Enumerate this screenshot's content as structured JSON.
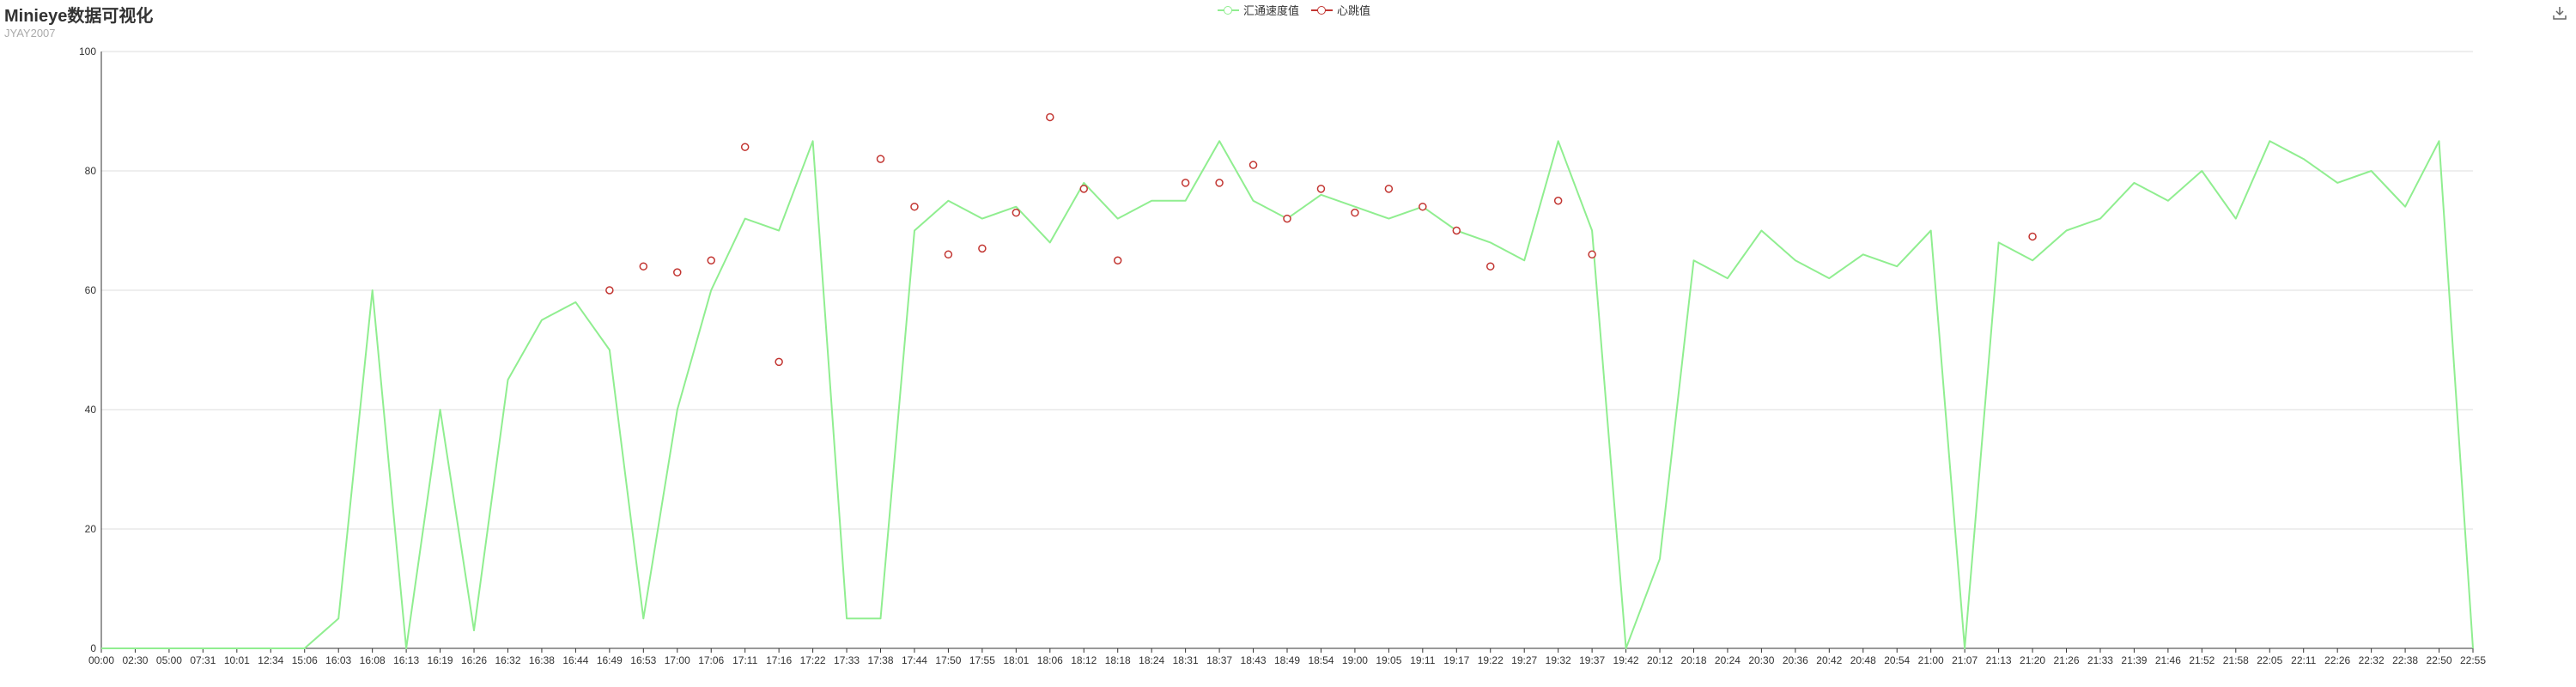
{
  "header": {
    "title": "Minieye数据可视化",
    "subtitle": "JYAY2007"
  },
  "legend": [
    {
      "name": "汇通速度值",
      "color": "#90ee90",
      "symbol": "empty-circle"
    },
    {
      "name": "心跳值",
      "color": "#c23531",
      "symbol": "empty-circle"
    }
  ],
  "toolbox": {
    "icon": "download-icon"
  },
  "colors": {
    "speed": "#90ee90",
    "heartbeat": "#c23531",
    "grid": "#dddddd",
    "axis": "#333333"
  },
  "chart_data": {
    "type": "line",
    "title": "Minieye数据可视化",
    "subtitle": "JYAY2007",
    "ylim": [
      0,
      100
    ],
    "yticks": [
      0,
      20,
      40,
      60,
      80,
      100
    ],
    "grid": "horizontal",
    "legend_position": "top-center",
    "categories": [
      "00:00",
      "02:30",
      "05:00",
      "07:31",
      "10:01",
      "12:34",
      "15:06",
      "16:03",
      "16:08",
      "16:13",
      "16:19",
      "16:26",
      "16:32",
      "16:38",
      "16:44",
      "16:49",
      "16:53",
      "17:00",
      "17:06",
      "17:11",
      "17:16",
      "17:22",
      "17:33",
      "17:38",
      "17:44",
      "17:50",
      "17:55",
      "18:01",
      "18:06",
      "18:12",
      "18:18",
      "18:24",
      "18:31",
      "18:37",
      "18:43",
      "18:49",
      "18:54",
      "19:00",
      "19:05",
      "19:11",
      "19:17",
      "19:22",
      "19:27",
      "19:32",
      "19:37",
      "19:42",
      "20:12",
      "20:18",
      "20:24",
      "20:30",
      "20:36",
      "20:42",
      "20:48",
      "20:54",
      "21:00",
      "21:07",
      "21:13",
      "21:20",
      "21:26",
      "21:33",
      "21:39",
      "21:46",
      "21:52",
      "21:58",
      "22:05",
      "22:11",
      "22:26",
      "22:32",
      "22:38",
      "22:50",
      "22:55"
    ],
    "series": [
      {
        "name": "汇通速度值",
        "values": [
          0,
          0,
          0,
          0,
          0,
          0,
          0,
          5,
          60,
          0,
          40,
          3,
          45,
          55,
          58,
          50,
          5,
          40,
          60,
          72,
          70,
          85,
          5,
          5,
          70,
          75,
          72,
          74,
          68,
          78,
          72,
          75,
          75,
          85,
          75,
          72,
          76,
          74,
          72,
          74,
          70,
          68,
          65,
          85,
          70,
          0,
          15,
          65,
          62,
          70,
          65,
          62,
          66,
          64,
          70,
          0,
          68,
          65,
          70,
          72,
          78,
          75,
          80,
          72,
          85,
          82,
          78,
          80,
          74,
          85,
          0
        ]
      },
      {
        "name": "心跳值",
        "points": [
          [
            "16:49",
            60
          ],
          [
            "16:53",
            64
          ],
          [
            "17:00",
            63
          ],
          [
            "17:06",
            65
          ],
          [
            "17:11",
            84
          ],
          [
            "17:16",
            48
          ],
          [
            "17:38",
            82
          ],
          [
            "17:44",
            74
          ],
          [
            "17:50",
            66
          ],
          [
            "17:55",
            67
          ],
          [
            "18:01",
            73
          ],
          [
            "18:06",
            89
          ],
          [
            "18:12",
            77
          ],
          [
            "18:18",
            65
          ],
          [
            "18:31",
            78
          ],
          [
            "18:37",
            78
          ],
          [
            "18:43",
            81
          ],
          [
            "18:49",
            72
          ],
          [
            "18:54",
            77
          ],
          [
            "19:00",
            73
          ],
          [
            "19:05",
            77
          ],
          [
            "19:11",
            74
          ],
          [
            "19:17",
            70
          ],
          [
            "19:22",
            64
          ],
          [
            "19:32",
            75
          ],
          [
            "19:37",
            66
          ],
          [
            "21:20",
            69
          ]
        ]
      }
    ]
  }
}
